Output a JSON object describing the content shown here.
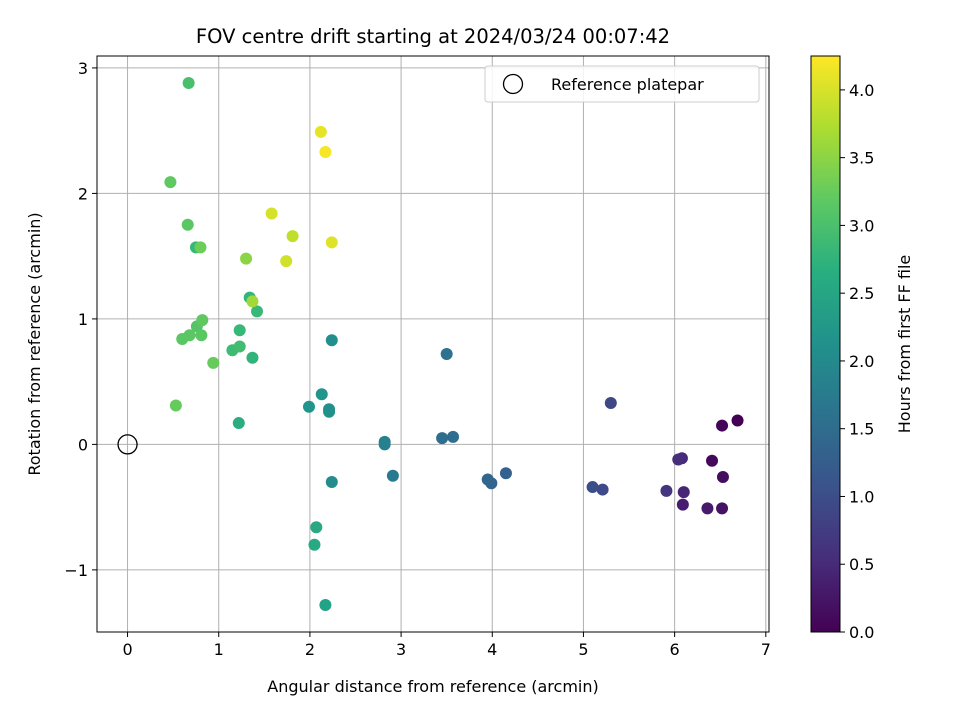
{
  "chart_data": {
    "type": "scatter",
    "title": "FOV centre drift starting at 2024/03/24 00:07:42",
    "xlabel": "Angular distance from reference (arcmin)",
    "ylabel": "Rotation from reference (arcmin)",
    "xlim": [
      -0.335,
      7.035
    ],
    "ylim": [
      -1.495,
      3.095
    ],
    "xticks": [
      0,
      1,
      2,
      3,
      4,
      5,
      6,
      7
    ],
    "xtick_labels": [
      "0",
      "1",
      "2",
      "3",
      "4",
      "5",
      "6",
      "7"
    ],
    "yticks": [
      -1,
      0,
      1,
      2,
      3
    ],
    "ytick_labels": [
      "−1",
      "0",
      "1",
      "2",
      "3"
    ],
    "grid": true,
    "legend": {
      "position": "top-right",
      "entries": [
        "Reference platepar"
      ]
    },
    "reference_point": {
      "x": 0,
      "y": 0,
      "label": "Reference platepar"
    },
    "colorbar": {
      "label": "Hours from first FF file",
      "colormap": "viridis",
      "range": [
        0,
        4.25
      ],
      "ticks": [
        0,
        0.5,
        1,
        1.5,
        2,
        2.5,
        3,
        3.5,
        4
      ],
      "tick_labels": [
        "0.0",
        "0.5",
        "1.0",
        "1.5",
        "2.0",
        "2.5",
        "3.0",
        "3.5",
        "4.0"
      ]
    },
    "points": [
      {
        "x": 6.69,
        "y": 0.19,
        "c": 0.0
      },
      {
        "x": 6.52,
        "y": 0.15,
        "c": 0.05
      },
      {
        "x": 6.41,
        "y": -0.13,
        "c": 0.1
      },
      {
        "x": 6.53,
        "y": -0.26,
        "c": 0.15
      },
      {
        "x": 6.52,
        "y": -0.51,
        "c": 0.2
      },
      {
        "x": 6.36,
        "y": -0.51,
        "c": 0.3
      },
      {
        "x": 6.09,
        "y": -0.48,
        "c": 0.35
      },
      {
        "x": 6.1,
        "y": -0.38,
        "c": 0.45
      },
      {
        "x": 6.08,
        "y": -0.11,
        "c": 0.5
      },
      {
        "x": 6.04,
        "y": -0.12,
        "c": 0.55
      },
      {
        "x": 5.91,
        "y": -0.37,
        "c": 0.65
      },
      {
        "x": 5.3,
        "y": 0.33,
        "c": 0.9
      },
      {
        "x": 5.21,
        "y": -0.36,
        "c": 0.95
      },
      {
        "x": 5.1,
        "y": -0.34,
        "c": 1.0
      },
      {
        "x": 4.15,
        "y": -0.23,
        "c": 1.3
      },
      {
        "x": 3.99,
        "y": -0.31,
        "c": 1.35
      },
      {
        "x": 3.95,
        "y": -0.28,
        "c": 1.4
      },
      {
        "x": 3.57,
        "y": 0.06,
        "c": 1.5
      },
      {
        "x": 3.45,
        "y": 0.05,
        "c": 1.55
      },
      {
        "x": 3.5,
        "y": 0.72,
        "c": 1.6
      },
      {
        "x": 2.91,
        "y": -0.25,
        "c": 1.75
      },
      {
        "x": 2.82,
        "y": 0.0,
        "c": 1.85
      },
      {
        "x": 2.82,
        "y": 0.02,
        "c": 1.85
      },
      {
        "x": 2.24,
        "y": -0.3,
        "c": 2.05
      },
      {
        "x": 2.24,
        "y": 0.83,
        "c": 2.1
      },
      {
        "x": 2.21,
        "y": 0.26,
        "c": 2.15
      },
      {
        "x": 2.21,
        "y": 0.28,
        "c": 2.15
      },
      {
        "x": 2.13,
        "y": 0.4,
        "c": 2.2
      },
      {
        "x": 1.99,
        "y": 0.3,
        "c": 2.2
      },
      {
        "x": 2.17,
        "y": -1.28,
        "c": 2.45
      },
      {
        "x": 2.07,
        "y": -0.66,
        "c": 2.55
      },
      {
        "x": 2.05,
        "y": -0.8,
        "c": 2.55
      },
      {
        "x": 1.22,
        "y": 0.17,
        "c": 2.65
      },
      {
        "x": 1.37,
        "y": 0.69,
        "c": 2.75
      },
      {
        "x": 1.34,
        "y": 1.17,
        "c": 2.8
      },
      {
        "x": 1.42,
        "y": 1.06,
        "c": 2.85
      },
      {
        "x": 1.23,
        "y": 0.91,
        "c": 2.85
      },
      {
        "x": 0.75,
        "y": 1.57,
        "c": 2.85
      },
      {
        "x": 1.15,
        "y": 0.75,
        "c": 2.9
      },
      {
        "x": 1.23,
        "y": 0.78,
        "c": 2.95
      },
      {
        "x": 0.67,
        "y": 2.88,
        "c": 3.0
      },
      {
        "x": 0.76,
        "y": 0.94,
        "c": 3.1
      },
      {
        "x": 0.6,
        "y": 0.84,
        "c": 3.15
      },
      {
        "x": 0.68,
        "y": 0.87,
        "c": 3.15
      },
      {
        "x": 0.81,
        "y": 0.87,
        "c": 3.15
      },
      {
        "x": 0.66,
        "y": 1.75,
        "c": 3.15
      },
      {
        "x": 0.82,
        "y": 0.99,
        "c": 3.2
      },
      {
        "x": 0.94,
        "y": 0.65,
        "c": 3.25
      },
      {
        "x": 0.53,
        "y": 0.31,
        "c": 3.25
      },
      {
        "x": 0.47,
        "y": 2.09,
        "c": 3.2
      },
      {
        "x": 0.8,
        "y": 1.57,
        "c": 3.3
      },
      {
        "x": 1.3,
        "y": 1.48,
        "c": 3.5
      },
      {
        "x": 1.37,
        "y": 1.14,
        "c": 3.65
      },
      {
        "x": 1.81,
        "y": 1.66,
        "c": 3.85
      },
      {
        "x": 1.74,
        "y": 1.46,
        "c": 3.95
      },
      {
        "x": 1.58,
        "y": 1.84,
        "c": 4.0
      },
      {
        "x": 2.24,
        "y": 1.61,
        "c": 4.05
      },
      {
        "x": 2.12,
        "y": 2.49,
        "c": 4.1
      },
      {
        "x": 2.17,
        "y": 2.33,
        "c": 4.2
      }
    ]
  }
}
